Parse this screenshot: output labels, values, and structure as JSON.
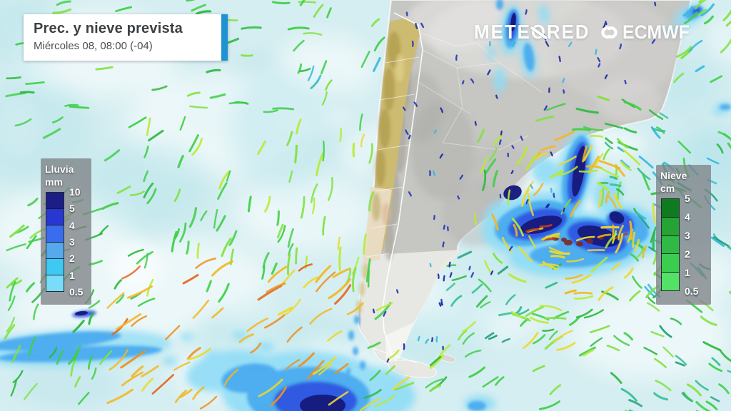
{
  "header": {
    "title": "Prec. y nieve prevista",
    "datetime": "Miércoles 08, 08:00 (-04)",
    "accent_color": "#1f93d2"
  },
  "branding": {
    "meteored_pre": "METE",
    "meteored_o": "O",
    "meteored_post": "RED",
    "ecmwf": "ECMWF"
  },
  "legends": {
    "rain": {
      "title": "Lluvia",
      "unit": "mm",
      "labels": [
        "10",
        "5",
        "4",
        "3",
        "2",
        "1",
        "0.5"
      ],
      "colors": [
        "#1d1d86",
        "#2737cf",
        "#3a6ded",
        "#55a9ec",
        "#3ec9f2",
        "#79dcf8"
      ]
    },
    "snow": {
      "title": "Nieve",
      "unit": "cm",
      "labels": [
        "5",
        "4",
        "3",
        "2",
        "1",
        "0.5"
      ],
      "colors": [
        "#0e7c1e",
        "#25a335",
        "#2fba45",
        "#3acd50",
        "#52e266"
      ]
    }
  },
  "map": {
    "ocean_color": "#d5eef1",
    "land_color": "#c6c6c3",
    "chile_color": "#cdbb72",
    "rain_shades": [
      "#8fdcf6",
      "#46a9ee",
      "#2e57e0",
      "#171a7e"
    ],
    "wind_palette": {
      "green": "#3ecf46",
      "green2": "#2db83e",
      "lgreen": "#7fe23c",
      "ygreen": "#b8ea32",
      "yellow": "#ecd92e",
      "gold": "#f2b722",
      "orange": "#ef8f1e",
      "deeporange": "#e2641a",
      "red": "#c83c14",
      "teal": "#2fbf8f",
      "dkteal": "#1f9f78",
      "cyan": "#35b8dc",
      "navy": "#2334b4",
      "navy2": "#18279e"
    }
  }
}
